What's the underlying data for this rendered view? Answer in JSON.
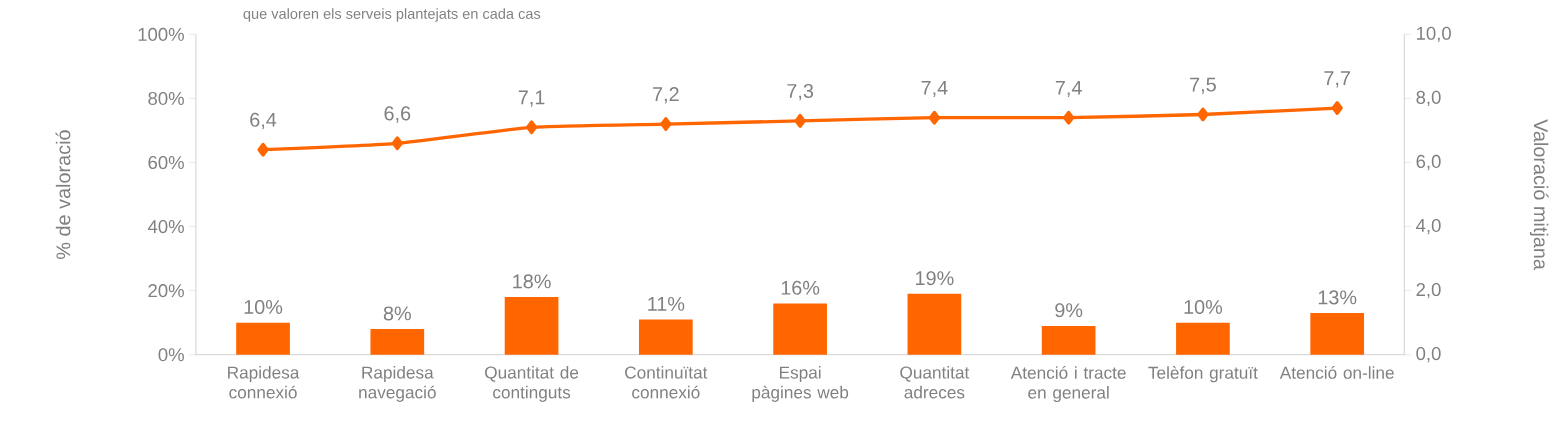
{
  "chart_data": {
    "type": "bar",
    "subtitle": "que valoren els serveis plantejats en cada cas",
    "ylabel": "% de valoració",
    "y2label": "Valoració mitjana",
    "categories": [
      "Rapidesa connexió",
      "Rapidesa navegació",
      "Quantitat de continguts",
      "Continuïtat connexió",
      "Espai pàgines web",
      "Quantitat adreces",
      "Atenció i tracte en general",
      "Telèfon gratuït",
      "Atenció on-line"
    ],
    "series": [
      {
        "axis": "y",
        "color": "#ff6600",
        "values": [
          10,
          8,
          18,
          11,
          16,
          19,
          9,
          10,
          13
        ],
        "value_labels": [
          "10%",
          "8%",
          "18%",
          "11%",
          "16%",
          "19%",
          "9%",
          "10%",
          "13%"
        ]
      },
      {
        "type": "line",
        "axis": "y2",
        "color": "#ff6600",
        "marker": "diamond",
        "values": [
          6.4,
          6.6,
          7.1,
          7.2,
          7.3,
          7.4,
          7.4,
          7.5,
          7.7
        ],
        "value_labels": [
          "6,4",
          "6,6",
          "7,1",
          "7,2",
          "7,3",
          "7,4",
          "7,4",
          "7,5",
          "7,7"
        ]
      }
    ],
    "ylim": [
      0,
      100
    ],
    "yticks": [
      {
        "value": 0,
        "label": "0%"
      },
      {
        "value": 20,
        "label": "20%"
      },
      {
        "value": 40,
        "label": "40%"
      },
      {
        "value": 60,
        "label": "60%"
      },
      {
        "value": 80,
        "label": "80%"
      },
      {
        "value": 100,
        "label": "100%"
      }
    ],
    "y2lim": [
      0,
      10
    ],
    "y2ticks": [
      {
        "value": 0,
        "label": "0,0"
      },
      {
        "value": 2,
        "label": "2,0"
      },
      {
        "value": 4,
        "label": "4,0"
      },
      {
        "value": 6,
        "label": "6,0"
      },
      {
        "value": 8,
        "label": "8,0"
      },
      {
        "value": 10,
        "label": "10,0"
      }
    ]
  }
}
